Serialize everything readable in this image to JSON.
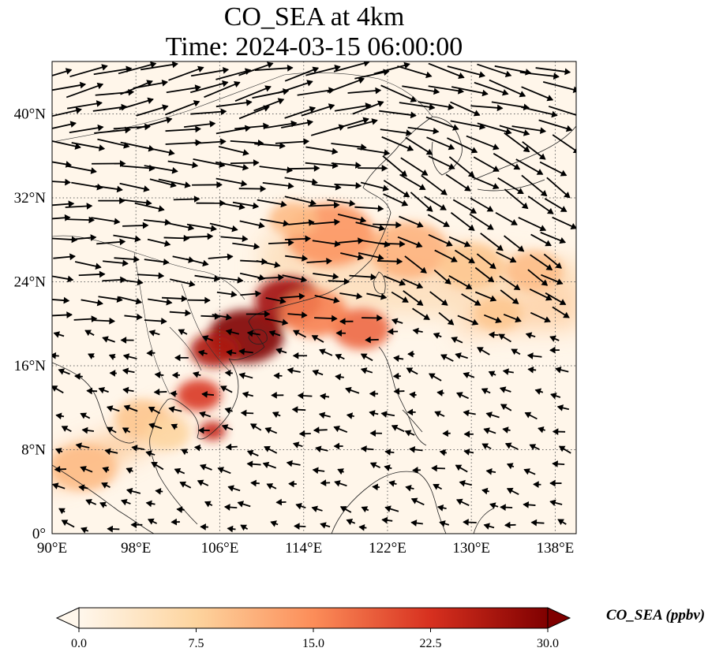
{
  "title": {
    "line1": "CO_SEA at 4km",
    "line2": "Time: 2024-03-15 06:00:00"
  },
  "map": {
    "lon_range": [
      90,
      140
    ],
    "lat_range": [
      0,
      45
    ],
    "lon_ticks": [
      "90°E",
      "98°E",
      "106°E",
      "114°E",
      "122°E",
      "130°E",
      "138°E"
    ],
    "lat_ticks": [
      "0°",
      "8°N",
      "16°N",
      "24°N",
      "32°N",
      "40°N"
    ],
    "lon_tick_values": [
      90,
      98,
      106,
      114,
      122,
      130,
      138
    ],
    "lat_tick_values": [
      0,
      8,
      16,
      24,
      32,
      40
    ],
    "gridlines": "dotted",
    "variable": "CO_SEA",
    "wind_vectors": true
  },
  "colorbar": {
    "label": "CO_SEA (ppbv)",
    "ticks": [
      "0.0",
      "7.5",
      "15.0",
      "22.5",
      "30.0"
    ],
    "tick_values": [
      0,
      7.5,
      15,
      22.5,
      30
    ],
    "range": [
      0,
      30
    ],
    "extend": "both",
    "colormap": [
      "#fff7ec",
      "#fdd49e",
      "#fc8d59",
      "#d7301f",
      "#7f0000"
    ]
  },
  "plumes": [
    {
      "lon": 108.5,
      "lat": 18.8,
      "value": 30
    },
    {
      "lon": 112.5,
      "lat": 22.2,
      "value": 27
    },
    {
      "lon": 105.5,
      "lat": 17.5,
      "value": 26
    },
    {
      "lon": 104.0,
      "lat": 13.2,
      "value": 22
    },
    {
      "lon": 105.3,
      "lat": 9.8,
      "value": 24
    },
    {
      "lon": 119.5,
      "lat": 19.5,
      "value": 18
    },
    {
      "lon": 115.0,
      "lat": 21.0,
      "value": 16
    },
    {
      "lon": 116.5,
      "lat": 28.5,
      "value": 14
    },
    {
      "lon": 113.0,
      "lat": 30.0,
      "value": 10
    },
    {
      "lon": 124.0,
      "lat": 27.0,
      "value": 11
    },
    {
      "lon": 130.0,
      "lat": 25.5,
      "value": 9
    },
    {
      "lon": 136.0,
      "lat": 25.0,
      "value": 10
    },
    {
      "lon": 132.5,
      "lat": 21.0,
      "value": 9
    },
    {
      "lon": 98.5,
      "lat": 11.0,
      "value": 9
    },
    {
      "lon": 93.0,
      "lat": 6.3,
      "value": 10
    },
    {
      "lon": 101.0,
      "lat": 9.5,
      "value": 7
    }
  ]
}
